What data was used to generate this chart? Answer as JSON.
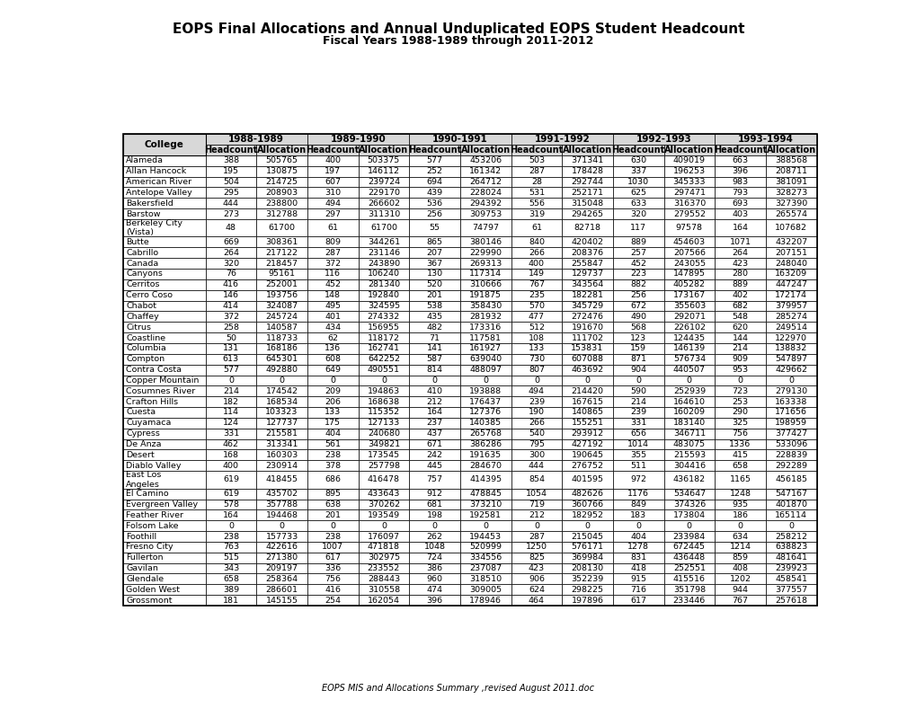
{
  "title": "EOPS Final Allocations and Annual Unduplicated EOPS Student Headcount",
  "subtitle": "Fiscal Years 1988-1989 through 2011-2012",
  "footer": "EOPS MIS and Allocations Summary ,revised August 2011.doc",
  "years": [
    "1988-1989",
    "1989-1990",
    "1990-1991",
    "1991-1992",
    "1992-1993",
    "1993-1994"
  ],
  "rows": [
    [
      "Alameda",
      388,
      505765,
      400,
      503375,
      577,
      453206,
      503,
      371341,
      630,
      409019,
      663,
      388568
    ],
    [
      "Allan Hancock",
      195,
      130875,
      197,
      146112,
      252,
      161342,
      287,
      178428,
      337,
      196253,
      396,
      208711
    ],
    [
      "American River",
      504,
      214725,
      607,
      239724,
      694,
      264712,
      28,
      292744,
      1030,
      345333,
      983,
      381091
    ],
    [
      "Antelope Valley",
      295,
      208903,
      310,
      229170,
      439,
      228024,
      531,
      252171,
      625,
      297471,
      793,
      328273
    ],
    [
      "Bakersfield",
      444,
      238800,
      494,
      266602,
      536,
      294392,
      556,
      315048,
      633,
      316370,
      693,
      327390
    ],
    [
      "Barstow",
      273,
      312788,
      297,
      311310,
      256,
      309753,
      319,
      294265,
      320,
      279552,
      403,
      265574
    ],
    [
      "Berkeley City\n(Vista)",
      48,
      61700,
      61,
      61700,
      55,
      74797,
      61,
      82718,
      117,
      97578,
      164,
      107682
    ],
    [
      "Butte",
      669,
      308361,
      809,
      344261,
      865,
      380146,
      840,
      420402,
      889,
      454603,
      1071,
      432207
    ],
    [
      "Cabrillo",
      264,
      217122,
      287,
      231146,
      207,
      229990,
      266,
      208376,
      257,
      207566,
      264,
      207151
    ],
    [
      "Canada",
      320,
      218457,
      372,
      243890,
      367,
      269313,
      400,
      255847,
      452,
      243055,
      423,
      248040
    ],
    [
      "Canyons",
      76,
      95161,
      116,
      106240,
      130,
      117314,
      149,
      129737,
      223,
      147895,
      280,
      163209
    ],
    [
      "Cerritos",
      416,
      252001,
      452,
      281340,
      520,
      310666,
      767,
      343564,
      882,
      405282,
      889,
      447247
    ],
    [
      "Cerro Coso",
      146,
      193756,
      148,
      192840,
      201,
      191875,
      235,
      182281,
      256,
      173167,
      402,
      172174
    ],
    [
      "Chabot",
      414,
      324087,
      495,
      324595,
      538,
      358430,
      570,
      345729,
      672,
      355603,
      682,
      379957
    ],
    [
      "Chaffey",
      372,
      245724,
      401,
      274332,
      435,
      281932,
      477,
      272476,
      490,
      292071,
      548,
      285274
    ],
    [
      "Citrus",
      258,
      140587,
      434,
      156955,
      482,
      173316,
      512,
      191670,
      568,
      226102,
      620,
      249514
    ],
    [
      "Coastline",
      50,
      118733,
      62,
      118172,
      71,
      117581,
      108,
      111702,
      123,
      124435,
      144,
      122970
    ],
    [
      "Columbia",
      131,
      168186,
      136,
      162741,
      141,
      161927,
      133,
      153831,
      159,
      146139,
      214,
      138832
    ],
    [
      "Compton",
      613,
      645301,
      608,
      642252,
      587,
      639040,
      730,
      607088,
      871,
      576734,
      909,
      547897
    ],
    [
      "Contra Costa",
      577,
      492880,
      649,
      490551,
      814,
      488097,
      807,
      463692,
      904,
      440507,
      953,
      429662
    ],
    [
      "Copper Mountain",
      0,
      0,
      0,
      0,
      0,
      0,
      0,
      0,
      0,
      0,
      0,
      0
    ],
    [
      "Cosumnes River",
      214,
      174542,
      209,
      194863,
      410,
      193888,
      494,
      214420,
      590,
      252939,
      723,
      279130
    ],
    [
      "Crafton Hills",
      182,
      168534,
      206,
      168638,
      212,
      176437,
      239,
      167615,
      214,
      164610,
      253,
      163338
    ],
    [
      "Cuesta",
      114,
      103323,
      133,
      115352,
      164,
      127376,
      190,
      140865,
      239,
      160209,
      290,
      171656
    ],
    [
      "Cuyamaca",
      124,
      127737,
      175,
      127133,
      237,
      140385,
      266,
      155251,
      331,
      183140,
      325,
      198959
    ],
    [
      "Cypress",
      331,
      215581,
      404,
      240680,
      437,
      265768,
      540,
      293912,
      656,
      346711,
      756,
      377427
    ],
    [
      "De Anza",
      462,
      313341,
      561,
      349821,
      671,
      386286,
      795,
      427192,
      1014,
      483075,
      1336,
      533096
    ],
    [
      "Desert",
      168,
      160303,
      238,
      173545,
      242,
      191635,
      300,
      190645,
      355,
      215593,
      415,
      228839
    ],
    [
      "Diablo Valley",
      400,
      230914,
      378,
      257798,
      445,
      284670,
      444,
      276752,
      511,
      304416,
      658,
      292289
    ],
    [
      "East Los\nAngeles",
      619,
      418455,
      686,
      416478,
      757,
      414395,
      854,
      401595,
      972,
      436182,
      1165,
      456185
    ],
    [
      "El Camino",
      619,
      435702,
      895,
      433643,
      912,
      478845,
      1054,
      482626,
      1176,
      534647,
      1248,
      547167
    ],
    [
      "Evergreen Valley",
      578,
      357788,
      638,
      370262,
      681,
      373210,
      719,
      360766,
      849,
      374326,
      935,
      401870
    ],
    [
      "Feather River",
      164,
      194468,
      201,
      193549,
      198,
      192581,
      212,
      182952,
      183,
      173804,
      186,
      165114
    ],
    [
      "Folsom Lake",
      0,
      0,
      0,
      0,
      0,
      0,
      0,
      0,
      0,
      0,
      0,
      0
    ],
    [
      "Foothill",
      238,
      157733,
      238,
      176097,
      262,
      194453,
      287,
      215045,
      404,
      233984,
      634,
      258212
    ],
    [
      "Fresno City",
      763,
      422616,
      1007,
      471818,
      1048,
      520999,
      1250,
      576171,
      1278,
      672445,
      1214,
      638823
    ],
    [
      "Fullerton",
      515,
      271380,
      617,
      302975,
      724,
      334556,
      825,
      369984,
      831,
      436448,
      859,
      481641
    ],
    [
      "Gavilan",
      343,
      209197,
      336,
      233552,
      386,
      237087,
      423,
      208130,
      418,
      252551,
      408,
      239923
    ],
    [
      "Glendale",
      658,
      258364,
      756,
      288443,
      960,
      318510,
      906,
      352239,
      915,
      415516,
      1202,
      458541
    ],
    [
      "Golden West",
      389,
      286601,
      416,
      310558,
      474,
      309005,
      624,
      298225,
      716,
      351798,
      944,
      377557
    ],
    [
      "Grossmont",
      181,
      145155,
      254,
      162054,
      396,
      178946,
      464,
      197896,
      617,
      233446,
      767,
      257618
    ]
  ]
}
